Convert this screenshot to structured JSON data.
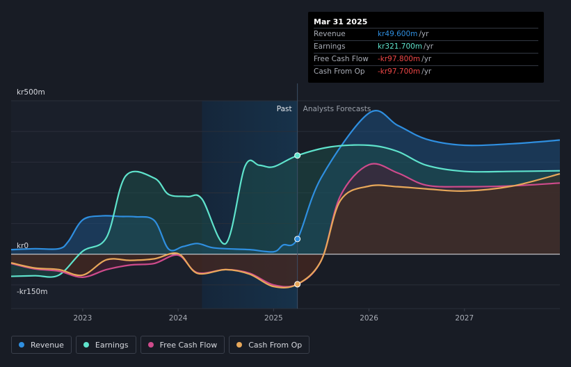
{
  "chart_data": {
    "type": "area",
    "ylim": [
      -150,
      500
    ],
    "y_ticks": [
      {
        "value": 500,
        "label": "kr500m"
      },
      {
        "value": 0,
        "label": "kr0"
      },
      {
        "value": -150,
        "label": "-kr150m"
      }
    ],
    "xlim": [
      2022.25,
      2028.0
    ],
    "x_ticks": [
      {
        "value": 2023,
        "label": "2023"
      },
      {
        "value": 2024,
        "label": "2024"
      },
      {
        "value": 2025,
        "label": "2025"
      },
      {
        "value": 2026,
        "label": "2026"
      },
      {
        "value": 2027,
        "label": "2027"
      }
    ],
    "divider_x": 2025.25,
    "shade_start_x": 2024.25,
    "past_label": "Past",
    "forecast_label": "Analysts Forecasts",
    "series": [
      {
        "name": "Revenue",
        "color": "#2f8fe0",
        "fill": "#1e4f7e",
        "points": [
          [
            2022.25,
            15
          ],
          [
            2022.5,
            18
          ],
          [
            2022.75,
            18
          ],
          [
            2022.85,
            42
          ],
          [
            2023.0,
            112
          ],
          [
            2023.2,
            125
          ],
          [
            2023.4,
            123
          ],
          [
            2023.55,
            122
          ],
          [
            2023.75,
            110
          ],
          [
            2023.9,
            17
          ],
          [
            2024.05,
            25
          ],
          [
            2024.2,
            35
          ],
          [
            2024.35,
            22
          ],
          [
            2024.5,
            18
          ],
          [
            2024.75,
            15
          ],
          [
            2025.0,
            8
          ],
          [
            2025.1,
            30
          ],
          [
            2025.25,
            49.6
          ],
          [
            2025.5,
            250
          ],
          [
            2026.0,
            460
          ],
          [
            2026.3,
            420
          ],
          [
            2026.6,
            375
          ],
          [
            2027.0,
            355
          ],
          [
            2027.5,
            360
          ],
          [
            2028.0,
            372
          ]
        ]
      },
      {
        "name": "Earnings",
        "color": "#5fe3cc",
        "fill": "#1d4c49",
        "points": [
          [
            2022.25,
            -72
          ],
          [
            2022.5,
            -70
          ],
          [
            2022.75,
            -68
          ],
          [
            2023.0,
            10
          ],
          [
            2023.25,
            55
          ],
          [
            2023.45,
            255
          ],
          [
            2023.75,
            248
          ],
          [
            2023.9,
            195
          ],
          [
            2024.1,
            188
          ],
          [
            2024.25,
            180
          ],
          [
            2024.5,
            35
          ],
          [
            2024.7,
            286
          ],
          [
            2024.85,
            290
          ],
          [
            2025.0,
            285
          ],
          [
            2025.25,
            321.7
          ],
          [
            2025.6,
            350
          ],
          [
            2026.0,
            355
          ],
          [
            2026.3,
            335
          ],
          [
            2026.6,
            290
          ],
          [
            2027.0,
            270
          ],
          [
            2027.5,
            270
          ],
          [
            2028.0,
            272
          ]
        ]
      },
      {
        "name": "Free Cash Flow",
        "color": "#cf4b8c",
        "fill": "#4a1e32",
        "points": [
          [
            2022.25,
            -30
          ],
          [
            2022.5,
            -48
          ],
          [
            2022.75,
            -55
          ],
          [
            2023.0,
            -75
          ],
          [
            2023.25,
            -50
          ],
          [
            2023.5,
            -35
          ],
          [
            2023.75,
            -30
          ],
          [
            2024.0,
            -3
          ],
          [
            2024.2,
            -60
          ],
          [
            2024.5,
            -50
          ],
          [
            2024.75,
            -62
          ],
          [
            2025.0,
            -100
          ],
          [
            2025.25,
            -97.8
          ],
          [
            2025.5,
            -20
          ],
          [
            2025.7,
            190
          ],
          [
            2026.0,
            292
          ],
          [
            2026.3,
            265
          ],
          [
            2026.6,
            225
          ],
          [
            2027.0,
            220
          ],
          [
            2027.5,
            223
          ],
          [
            2028.0,
            232
          ]
        ]
      },
      {
        "name": "Cash From Op",
        "color": "#e8a85a",
        "fill": "#3f2b1a",
        "points": [
          [
            2022.25,
            -28
          ],
          [
            2022.5,
            -45
          ],
          [
            2022.75,
            -50
          ],
          [
            2023.0,
            -68
          ],
          [
            2023.25,
            -18
          ],
          [
            2023.5,
            -20
          ],
          [
            2023.75,
            -15
          ],
          [
            2024.0,
            2
          ],
          [
            2024.2,
            -62
          ],
          [
            2024.5,
            -50
          ],
          [
            2024.75,
            -65
          ],
          [
            2025.0,
            -105
          ],
          [
            2025.25,
            -97.7
          ],
          [
            2025.5,
            -20
          ],
          [
            2025.7,
            175
          ],
          [
            2026.0,
            222
          ],
          [
            2026.3,
            220
          ],
          [
            2026.6,
            213
          ],
          [
            2027.0,
            206
          ],
          [
            2027.5,
            222
          ],
          [
            2028.0,
            262
          ]
        ]
      }
    ]
  },
  "tooltip": {
    "date": "Mar 31 2025",
    "rows": [
      {
        "label": "Revenue",
        "value": "kr49.600m",
        "unit": "/yr",
        "color": "#2f8fe0"
      },
      {
        "label": "Earnings",
        "value": "kr321.700m",
        "unit": "/yr",
        "color": "#5fe3cc"
      },
      {
        "label": "Free Cash Flow",
        "value": "-kr97.800m",
        "unit": "/yr",
        "color": "#ef4747"
      },
      {
        "label": "Cash From Op",
        "value": "-kr97.700m",
        "unit": "/yr",
        "color": "#ef4747"
      }
    ]
  },
  "legend": [
    {
      "label": "Revenue",
      "color": "#2f8fe0"
    },
    {
      "label": "Earnings",
      "color": "#5fe3cc"
    },
    {
      "label": "Free Cash Flow",
      "color": "#cf4b8c"
    },
    {
      "label": "Cash From Op",
      "color": "#e8a85a"
    }
  ]
}
